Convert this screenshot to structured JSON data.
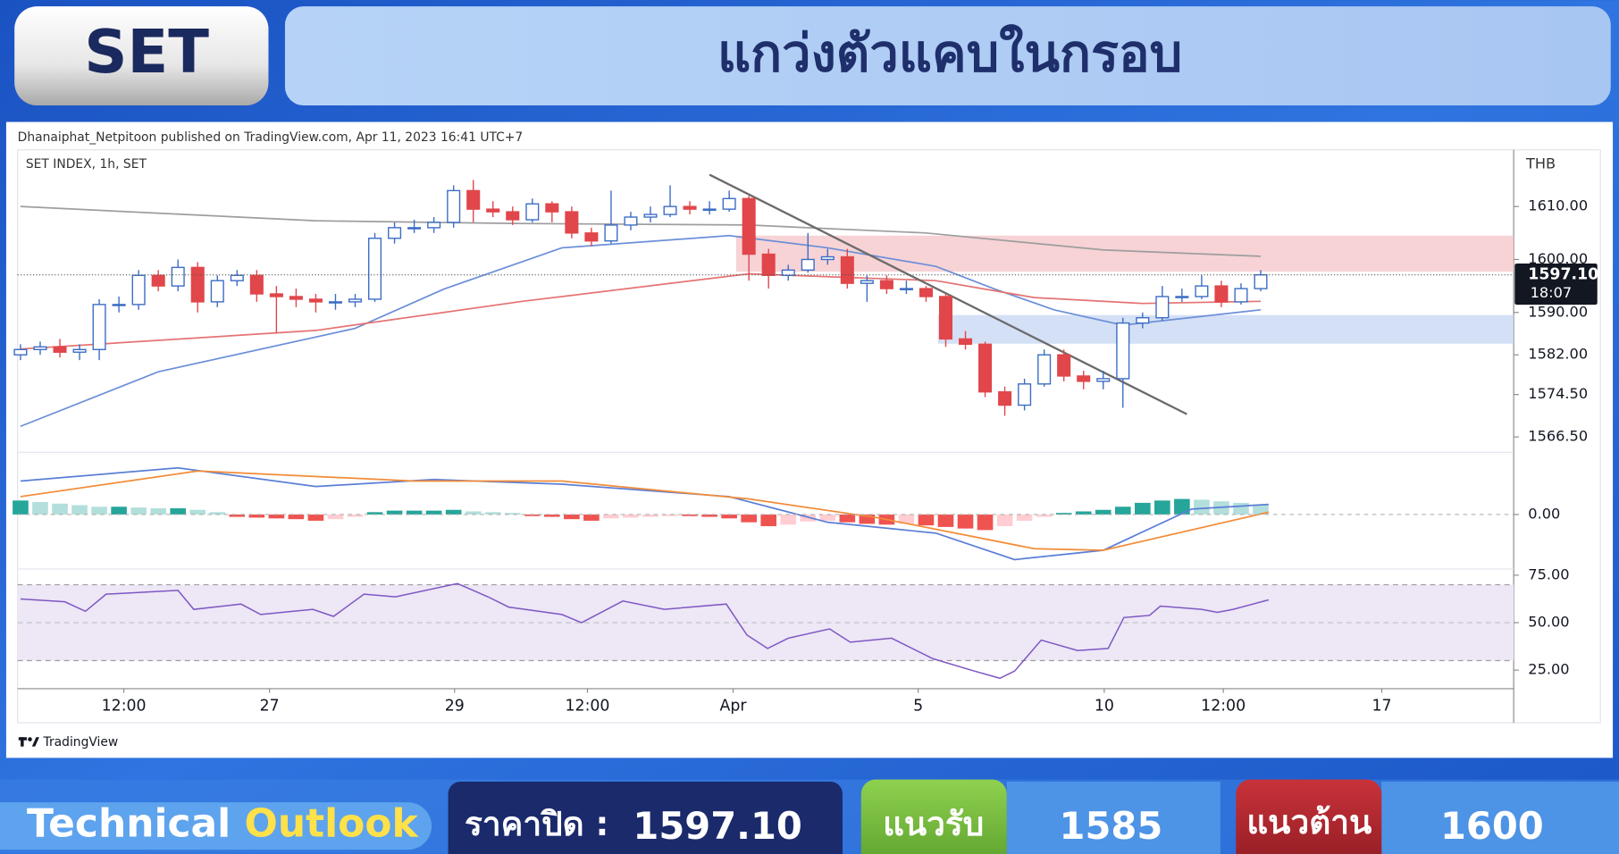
{
  "header": {
    "badge": "SET",
    "title": "แกว่งตัวแคบในกรอบ"
  },
  "attribution": "Dhanaiphat_Netpitoon published on TradingView.com, Apr 11, 2023 16:41 UTC+7",
  "logo": "TradingView",
  "chart_data": [
    {
      "type": "candlestick",
      "symbol_label": "SET INDEX, 1h, SET",
      "currency": "THB",
      "up_color": "#3b6cc4",
      "down_color": "#e0464a",
      "x": [
        0,
        2,
        4,
        6,
        8,
        10,
        12,
        14,
        16,
        18,
        20,
        22,
        24,
        26,
        28,
        30,
        32,
        34,
        36,
        38,
        40,
        42,
        44,
        46,
        48,
        50,
        52,
        54,
        56,
        58,
        60,
        62,
        64,
        66,
        68,
        70,
        72,
        74,
        76,
        78,
        80,
        82,
        84,
        86,
        88,
        90,
        92,
        94,
        96,
        98,
        100,
        102,
        104,
        106,
        108,
        110,
        112,
        114,
        116,
        118,
        120,
        122,
        124,
        126
      ],
      "open": [
        1582,
        1583,
        1583.5,
        1582.5,
        1583,
        1591.5,
        1591.5,
        1597,
        1595,
        1598.5,
        1592,
        1596,
        1597,
        1593.5,
        1593,
        1592.5,
        1592,
        1592,
        1592.5,
        1604,
        1606,
        1606,
        1607,
        1613,
        1609.5,
        1609,
        1607.5,
        1610.5,
        1609,
        1605,
        1603.5,
        1606.5,
        1608,
        1608.5,
        1610,
        1609.5,
        1609.5,
        1611.5,
        1601,
        1597,
        1598,
        1600,
        1600.5,
        1595.5,
        1596,
        1594.5,
        1594.5,
        1593,
        1585,
        1584,
        1575,
        1572.5,
        1576.5,
        1582,
        1578,
        1577,
        1577.5,
        1588,
        1589,
        1593,
        1593,
        1595,
        1592,
        1594.5
      ],
      "high": [
        1584,
        1584.5,
        1585,
        1584,
        1592.5,
        1593,
        1598,
        1598,
        1600,
        1599.5,
        1597,
        1598,
        1598,
        1595,
        1594.5,
        1593.5,
        1593.5,
        1593.5,
        1605,
        1607,
        1607.5,
        1608,
        1614,
        1615,
        1611,
        1610,
        1611.5,
        1611,
        1610,
        1606,
        1613,
        1609,
        1610,
        1614,
        1611,
        1611,
        1613,
        1612,
        1602,
        1599,
        1605,
        1602,
        1602,
        1597,
        1597,
        1596,
        1595,
        1593.5,
        1586.5,
        1584.5,
        1576,
        1577.5,
        1583,
        1583,
        1579,
        1579,
        1589,
        1590,
        1595,
        1594.5,
        1597,
        1596,
        1595.5,
        1598
      ],
      "low": [
        1581,
        1582,
        1581.5,
        1581,
        1581,
        1590,
        1590.5,
        1594,
        1594,
        1590,
        1591,
        1595,
        1592,
        1586,
        1591,
        1590,
        1590.5,
        1591,
        1592,
        1603,
        1605,
        1605,
        1606,
        1607,
        1608,
        1606.5,
        1607,
        1607,
        1604,
        1602.5,
        1603,
        1605.5,
        1607,
        1608,
        1608.5,
        1608.5,
        1609,
        1596,
        1594.5,
        1596,
        1597.5,
        1599,
        1594.5,
        1592,
        1593.5,
        1593.5,
        1592,
        1583.5,
        1583,
        1574,
        1570.5,
        1571.5,
        1576,
        1577,
        1575.5,
        1575.5,
        1572,
        1587,
        1588.5,
        1592,
        1592.5,
        1591,
        1591.5,
        1594
      ],
      "close": [
        1583,
        1583.5,
        1582.5,
        1583,
        1591.5,
        1591.5,
        1597,
        1595,
        1598.5,
        1592,
        1596,
        1597,
        1593.5,
        1593,
        1592.5,
        1592,
        1592,
        1592.5,
        1604,
        1606,
        1606,
        1607,
        1613,
        1609.5,
        1609,
        1607.5,
        1610.5,
        1609,
        1605,
        1603.5,
        1606.5,
        1608,
        1608.5,
        1610,
        1609.5,
        1609.5,
        1611.5,
        1601,
        1597,
        1598,
        1600,
        1600.5,
        1595.5,
        1596,
        1594.5,
        1594.5,
        1593,
        1585,
        1584,
        1575,
        1572.5,
        1576.5,
        1582,
        1578,
        1577,
        1577.5,
        1588,
        1589,
        1593,
        1593,
        1595,
        1592,
        1594.5,
        1597.1
      ],
      "overlays": [
        {
          "color": "#9e9e9e",
          "x": [
            0,
            30,
            50,
            74,
            92,
            110,
            126
          ],
          "values": [
            1610,
            1607.3,
            1606.8,
            1606.5,
            1605,
            1601.8,
            1600.6
          ]
        },
        {
          "color": "#6c8fd8",
          "x": [
            0,
            14,
            34,
            43,
            55,
            72,
            82,
            93,
            99,
            105,
            112,
            126
          ],
          "values": [
            1568.5,
            1578.8,
            1587,
            1594.4,
            1602.2,
            1604.5,
            1602.2,
            1598.7,
            1594.4,
            1590.5,
            1587.6,
            1590.5
          ]
        },
        {
          "color": "#e57373",
          "x": [
            0,
            30,
            51,
            74,
            93,
            103,
            114,
            126
          ],
          "values": [
            1583.1,
            1586.6,
            1592.1,
            1597.3,
            1596,
            1592.8,
            1591.7,
            1592.1
          ]
        }
      ],
      "trendline": {
        "color": "#6b6b6b",
        "x": [
          70,
          118.5
        ],
        "values": [
          1616,
          1570.8
        ]
      },
      "zones": [
        {
          "color": "#f4c4c8",
          "x0": 72.7,
          "y": [
            1597.7,
            1604.5
          ]
        },
        {
          "color": "#c6d6f3",
          "x0": 93.2,
          "y": [
            1584.1,
            1589.5
          ]
        }
      ],
      "last_price": {
        "value": 1597.1,
        "label": "1597.10"
      },
      "countdown": "18:07",
      "xlim": [
        -0.3,
        151.7
      ],
      "ylim": [
        1563.6,
        1620.7
      ],
      "yticks": [
        {
          "value": 1610,
          "label": "1610.00"
        },
        {
          "value": 1600,
          "label": "1600.00"
        },
        {
          "value": 1590,
          "label": "1590.00"
        },
        {
          "value": 1582,
          "label": "1582.00"
        },
        {
          "value": 1574.5,
          "label": "1574.50"
        },
        {
          "value": 1566.5,
          "label": "1566.50"
        }
      ]
    },
    {
      "type": "macd",
      "x": [
        0,
        2,
        4,
        6,
        8,
        10,
        12,
        14,
        16,
        18,
        20,
        22,
        24,
        26,
        28,
        30,
        32,
        34,
        36,
        38,
        40,
        42,
        44,
        46,
        48,
        50,
        52,
        54,
        56,
        58,
        60,
        62,
        64,
        66,
        68,
        70,
        72,
        74,
        76,
        78,
        80,
        82,
        84,
        86,
        88,
        90,
        92,
        94,
        96,
        98,
        100,
        102,
        104,
        106,
        108,
        110,
        112,
        114,
        116,
        118,
        120,
        122,
        124,
        126
      ],
      "histogram": [
        1.8,
        1.6,
        1.4,
        1.2,
        1.0,
        1.0,
        0.9,
        0.8,
        0.8,
        0.6,
        0.3,
        -0.3,
        -0.4,
        -0.5,
        -0.6,
        -0.8,
        -0.6,
        -0.3,
        0.3,
        0.5,
        0.5,
        0.5,
        0.6,
        0.4,
        0.3,
        0.2,
        -0.2,
        -0.3,
        -0.6,
        -0.8,
        -0.5,
        -0.4,
        -0.3,
        -0.2,
        -0.2,
        -0.3,
        -0.5,
        -1.0,
        -1.5,
        -1.3,
        -0.9,
        -0.8,
        -1.0,
        -1.2,
        -1.3,
        -1.2,
        -1.4,
        -1.6,
        -1.8,
        -2.0,
        -1.5,
        -0.8,
        -0.3,
        0.2,
        0.4,
        0.6,
        1.0,
        1.5,
        1.8,
        2.0,
        1.9,
        1.7,
        1.5,
        1.3
      ],
      "hist_colors": {
        "pos_up": "#26a69a",
        "pos_down": "#b2dfdb",
        "neg_down": "#ef5350",
        "neg_up": "#ffcdd2"
      },
      "lines": [
        {
          "color": "#5b7fd6",
          "x": [
            0,
            16,
            30,
            42,
            55,
            72,
            82,
            93,
            101,
            110,
            119,
            126.8
          ],
          "values": [
            4.3,
            6,
            3.6,
            4.5,
            3.9,
            2.3,
            -1,
            -2.4,
            -5.8,
            -4.6,
            0.7,
            1.3
          ]
        },
        {
          "color": "#f28c38",
          "x": [
            0,
            18,
            40,
            55,
            74,
            87,
            103,
            110,
            126.8
          ],
          "values": [
            2.3,
            5.6,
            4.3,
            4.3,
            2,
            -0.4,
            -4.4,
            -4.6,
            0.3
          ]
        }
      ],
      "xlim": [
        -0.3,
        151.7
      ],
      "ylim": [
        -7,
        8
      ],
      "yticks": [
        {
          "value": 0,
          "label": "0.00"
        }
      ]
    },
    {
      "type": "line",
      "color": "#7e57c2",
      "band": [
        30,
        70
      ],
      "band_color": "#ede7f6",
      "midline": 50,
      "x": [
        0,
        4.5,
        6.6,
        8.7,
        16,
        17.6,
        22.4,
        24.4,
        29.7,
        31.8,
        34.9,
        38.1,
        44.4,
        47.5,
        49.6,
        55,
        57,
        61.2,
        65.4,
        71.7,
        73.8,
        75.9,
        78,
        82.2,
        84.3,
        88.5,
        92.7,
        96.9,
        99.5,
        101,
        103.7,
        107.4,
        110.5,
        112.1,
        114.7,
        115.8,
        120,
        121.6,
        123.2,
        126.8
      ],
      "values": [
        62.5,
        61,
        56,
        65,
        67,
        57,
        59.8,
        54.3,
        57,
        53.3,
        65,
        63.6,
        70.6,
        63.6,
        58.2,
        54.3,
        50,
        61.4,
        57,
        59.8,
        43.5,
        36.4,
        41.8,
        46.7,
        39.7,
        41.8,
        31,
        24.5,
        20.7,
        24.5,
        40.8,
        35.3,
        36.4,
        52.7,
        53.8,
        58.7,
        57,
        55.4,
        57,
        62
      ],
      "xlim": [
        -0.3,
        151.7
      ],
      "ylim": [
        15.2,
        78.3
      ],
      "yticks": [
        {
          "value": 75,
          "label": "75.00"
        },
        {
          "value": 50,
          "label": "50.00"
        },
        {
          "value": 25,
          "label": "25.00"
        }
      ],
      "xticks": [
        {
          "value": 10.5,
          "label": "12:00"
        },
        {
          "value": 25.3,
          "label": "27"
        },
        {
          "value": 44.1,
          "label": "29"
        },
        {
          "value": 57.6,
          "label": "12:00"
        },
        {
          "value": 72.4,
          "label": "Apr"
        },
        {
          "value": 91.2,
          "label": "5"
        },
        {
          "value": 110.1,
          "label": "10"
        },
        {
          "value": 122.2,
          "label": "12:00"
        },
        {
          "value": 138.3,
          "label": "17"
        }
      ]
    }
  ],
  "footer": {
    "left_1": "Technical",
    "left_2": "Outlook",
    "close_label": "ราคาปิด :",
    "close_value": "1597.10",
    "support_label": "แนวรับ",
    "support_value": "1585",
    "resistance_label": "แนวต้าน",
    "resistance_value": "1600"
  }
}
